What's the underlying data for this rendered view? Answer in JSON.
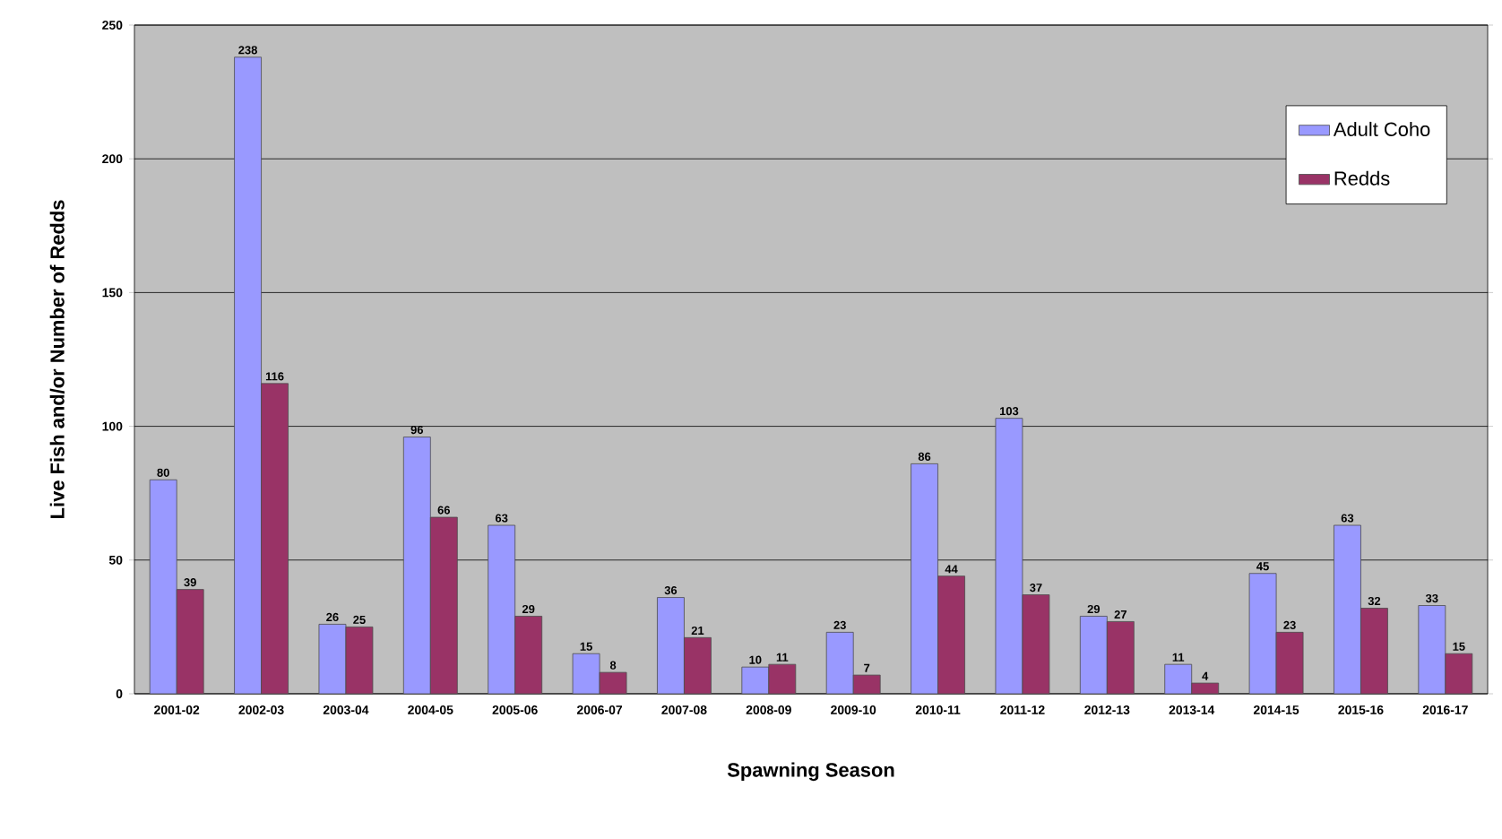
{
  "chart_data": {
    "type": "bar",
    "xlabel": "Spawning Season",
    "ylabel": "Live Fish and/or Number of Redds",
    "categories": [
      "2001-02",
      "2002-03",
      "2003-04",
      "2004-05",
      "2005-06",
      "2006-07",
      "2007-08",
      "2008-09",
      "2009-10",
      "2010-11",
      "2011-12",
      "2012-13",
      "2013-14",
      "2014-15",
      "2015-16",
      "2016-17"
    ],
    "series": [
      {
        "name": "Adult Coho",
        "color": "#9999ff",
        "values": [
          80,
          238,
          26,
          96,
          63,
          15,
          36,
          10,
          23,
          86,
          103,
          29,
          11,
          45,
          63,
          33
        ]
      },
      {
        "name": "Redds",
        "color": "#993366",
        "values": [
          39,
          116,
          25,
          66,
          29,
          8,
          21,
          11,
          7,
          44,
          37,
          27,
          4,
          23,
          32,
          15
        ]
      }
    ],
    "ylim": [
      0,
      250
    ],
    "yticks": [
      0,
      50,
      100,
      150,
      200,
      250
    ],
    "grid": "y",
    "legend": "top right",
    "data_labels": true
  }
}
